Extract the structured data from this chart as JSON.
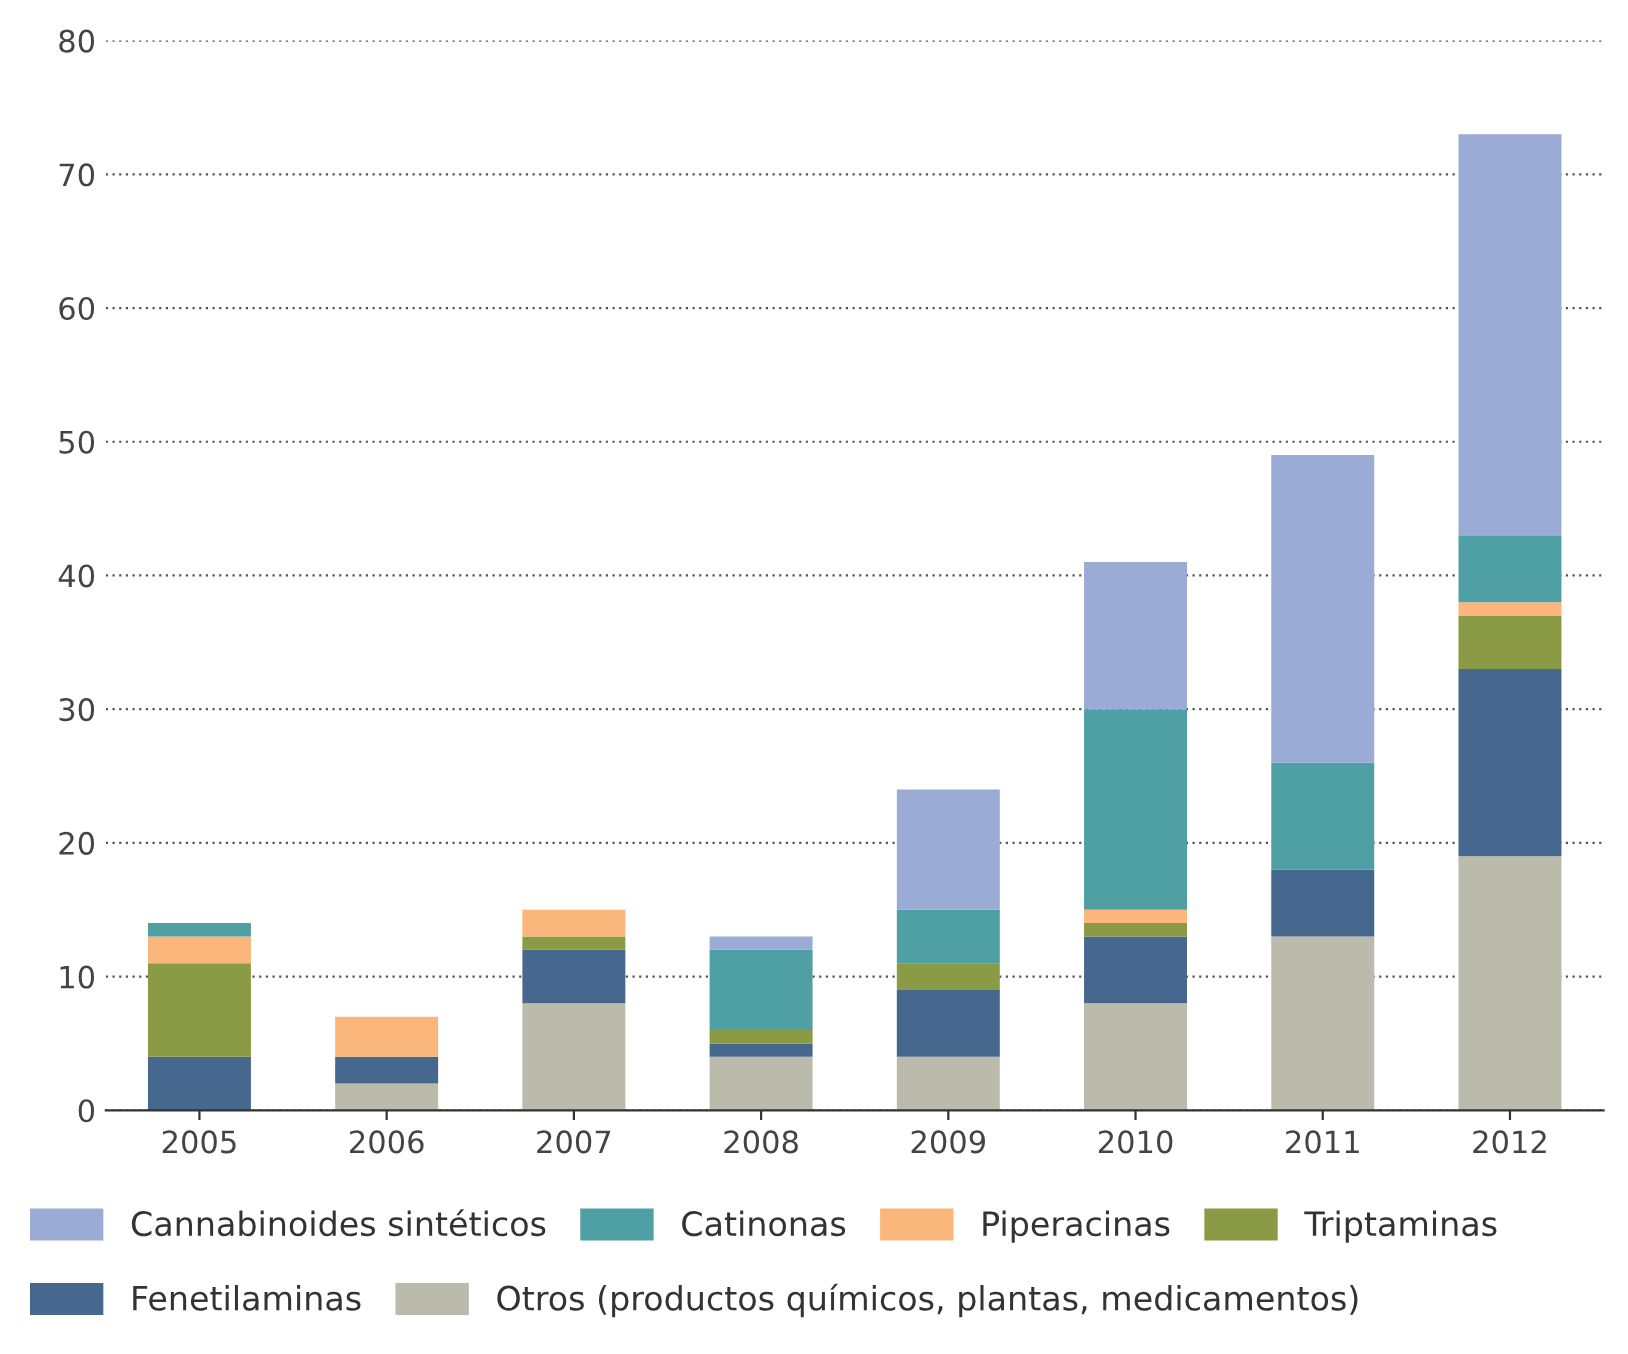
{
  "chart_data": {
    "type": "bar",
    "stacked": true,
    "categories": [
      "2005",
      "2006",
      "2007",
      "2008",
      "2009",
      "2010",
      "2011",
      "2012"
    ],
    "series": [
      {
        "name": "Otros (productos químicos, plantas, medicamentos)",
        "color": "#bbbbab",
        "values": [
          0,
          2,
          8,
          4,
          4,
          8,
          13,
          19
        ]
      },
      {
        "name": "Fenetilaminas",
        "color": "#46688f",
        "values": [
          4,
          2,
          4,
          1,
          5,
          5,
          5,
          14
        ]
      },
      {
        "name": "Triptaminas",
        "color": "#8a9a45",
        "values": [
          7,
          0,
          1,
          1,
          2,
          1,
          0,
          4
        ]
      },
      {
        "name": "Piperacinas",
        "color": "#fbb77b",
        "values": [
          2,
          3,
          2,
          0,
          0,
          1,
          0,
          1
        ]
      },
      {
        "name": "Catinonas",
        "color": "#4fa0a4",
        "values": [
          1,
          0,
          0,
          6,
          4,
          15,
          8,
          5
        ]
      },
      {
        "name": "Cannabinoides sintéticos",
        "color": "#9aabd6",
        "values": [
          0,
          0,
          0,
          1,
          9,
          11,
          23,
          30
        ]
      }
    ],
    "ylim": [
      0,
      80
    ],
    "yticks": [
      0,
      10,
      20,
      30,
      40,
      50,
      60,
      70,
      80
    ],
    "grid": "y",
    "legend": "bottom"
  }
}
